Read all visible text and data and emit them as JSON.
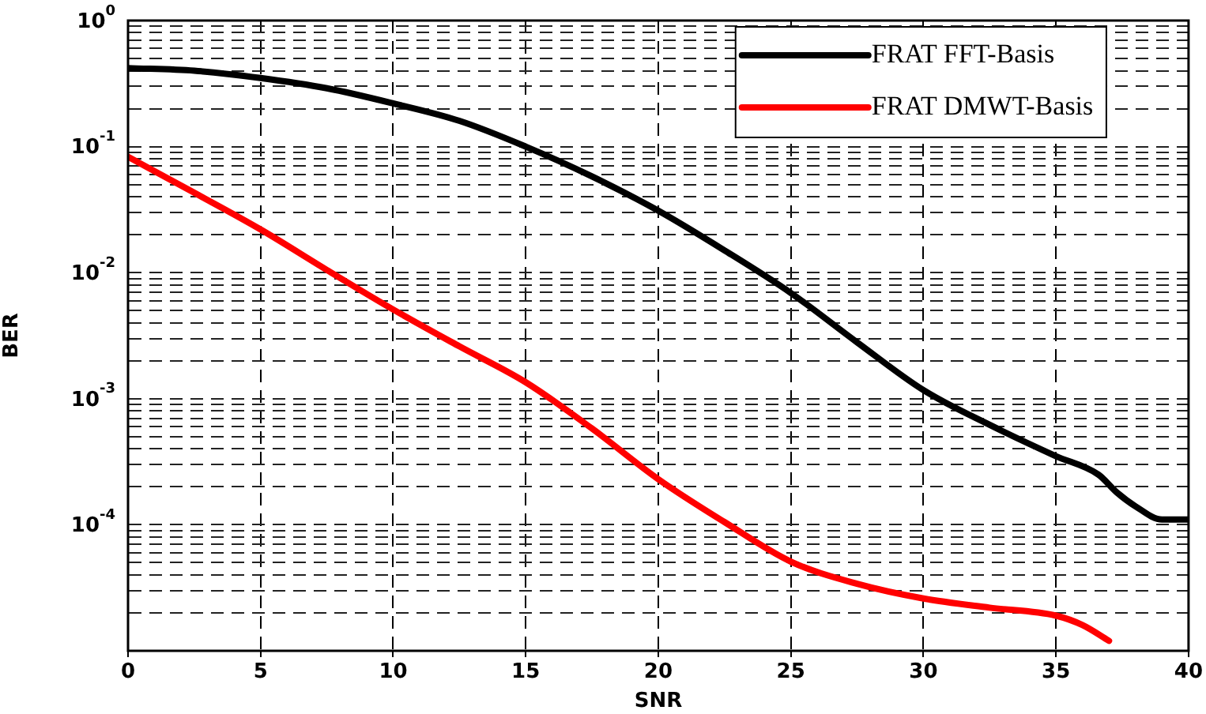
{
  "chart_data": {
    "type": "line",
    "xlabel": "SNR",
    "ylabel": "BER",
    "log": "y",
    "grid": true,
    "legend": "top right",
    "line_style": "solid",
    "marker": "none",
    "xlim": [
      0,
      40
    ],
    "xticks": [
      0,
      5,
      10,
      15,
      20,
      25,
      30,
      35,
      40
    ],
    "ylim": [
      1e-05,
      1
    ],
    "yticks": [
      {
        "value": 0.0001,
        "label": "10$^{-4}$"
      },
      {
        "value": 0.0002,
        "label": null
      },
      {
        "value": 0.0003,
        "label": null
      },
      {
        "value": 0.0004,
        "label": null
      },
      {
        "value": 0.0005,
        "label": null
      },
      {
        "value": 0.0006,
        "label": null
      },
      {
        "value": 0.0007,
        "label": null
      },
      {
        "value": 0.0008,
        "label": null
      },
      {
        "value": 0.0009,
        "label": null
      },
      {
        "value": 0.001,
        "label": "10$^{-3}$"
      },
      {
        "value": 0.002,
        "label": null
      },
      {
        "value": 0.003,
        "label": null
      },
      {
        "value": 0.004,
        "label": null
      },
      {
        "value": 0.005,
        "label": null
      },
      {
        "value": 0.006,
        "label": null
      },
      {
        "value": 0.007,
        "label": null
      },
      {
        "value": 0.008,
        "label": null
      },
      {
        "value": 0.009,
        "label": null
      },
      {
        "value": 0.01,
        "label": "10$^{-2}$"
      },
      {
        "value": 0.02,
        "label": null
      },
      {
        "value": 0.03,
        "label": null
      },
      {
        "value": 0.04,
        "label": null
      },
      {
        "value": 0.05,
        "label": null
      },
      {
        "value": 0.06,
        "label": null
      },
      {
        "value": 0.07,
        "label": null
      },
      {
        "value": 0.08,
        "label": null
      },
      {
        "value": 0.09,
        "label": null
      },
      {
        "value": 0.1,
        "label": "10$^{-1}$"
      },
      {
        "value": 0.2,
        "label": null
      },
      {
        "value": 0.3,
        "label": null
      },
      {
        "value": 0.4,
        "label": null
      },
      {
        "value": 0.5,
        "label": null
      },
      {
        "value": 0.6,
        "label": null
      },
      {
        "value": 0.7,
        "label": null
      },
      {
        "value": 0.8,
        "label": null
      },
      {
        "value": 0.9,
        "label": null
      },
      {
        "value": 1,
        "label": "10$^{0}$"
      },
      {
        "value": 2e-05,
        "label": null
      },
      {
        "value": 3e-05,
        "label": null
      },
      {
        "value": 4e-05,
        "label": null
      },
      {
        "value": 5e-05,
        "label": null
      },
      {
        "value": 6e-05,
        "label": null
      },
      {
        "value": 7e-05,
        "label": null
      },
      {
        "value": 8e-05,
        "label": null
      },
      {
        "value": 9e-05,
        "label": null
      }
    ],
    "series": [
      {
        "name": "FRAT FFT-Basis",
        "color": "#000000",
        "x": [
          0,
          2.5,
          5,
          7.5,
          10,
          12.5,
          15,
          17.5,
          20,
          22.5,
          25,
          27.5,
          30,
          32.5,
          35,
          36.6,
          37.3,
          38,
          39,
          40
        ],
        "values": [
          0.42,
          0.4,
          0.35,
          0.29,
          0.22,
          0.16,
          0.1,
          0.058,
          0.031,
          0.015,
          0.0069,
          0.0028,
          0.00117,
          0.00062,
          0.00035,
          0.00025,
          0.00018,
          0.00014,
          0.00011,
          0.00011
        ]
      },
      {
        "name": "FRAT DMWT-Basis",
        "color": "#ff0000",
        "x": [
          0,
          2.5,
          5,
          7.5,
          10,
          12.5,
          15,
          17.5,
          20,
          22.5,
          25,
          27.5,
          30,
          32.5,
          35,
          36,
          37
        ],
        "values": [
          0.083,
          0.043,
          0.022,
          0.0105,
          0.0051,
          0.0026,
          0.00135,
          0.00058,
          0.00023,
          0.000105,
          5.1e-05,
          3.4e-05,
          2.6e-05,
          2.2e-05,
          1.9e-05,
          1.6e-05,
          1.2e-05
        ]
      }
    ]
  }
}
